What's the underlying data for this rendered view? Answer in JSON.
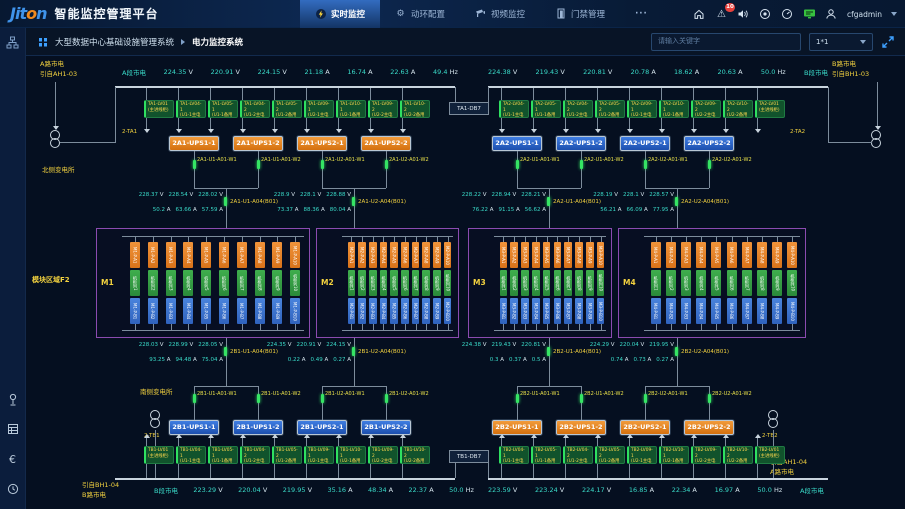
{
  "header": {
    "logo_prefix": "Jit",
    "logo_accent": "o",
    "logo_suffix": "n",
    "title": "智能监控管理平台",
    "tabs": [
      {
        "label": "实时监控",
        "active": true
      },
      {
        "label": "动环配置",
        "active": false
      },
      {
        "label": "视频监控",
        "active": false
      },
      {
        "label": "门禁管理",
        "active": false
      },
      {
        "label": "···",
        "active": false
      }
    ],
    "alarm_count": "10",
    "user": "cfgadmin"
  },
  "subheader": {
    "breadcrumb_root": "大型数据中心基础设施管理系统",
    "breadcrumb_current": "电力监控系统",
    "search_placeholder": "请输入关键字",
    "layout_option": "1*1"
  },
  "colors": {
    "accent_cyan": "#3adbc9",
    "label_yellow": "#f3d23f",
    "ups_orange": "#e8832a",
    "ups_blue": "#2e6fd6",
    "feeder_green": "#2fe060",
    "module_purple": "#8b4bb0",
    "wire_gray": "#7d8c9c",
    "alarm_red": "#e8413c"
  },
  "diagram": {
    "north": {
      "region": "北侧变电所",
      "left_incoming": [
        "A路市电",
        "引自AH1-03"
      ],
      "right_incoming": [
        "B路市电",
        "引自BH1-03"
      ],
      "left_transformer": "2-TA1",
      "right_transformer": "2-TA2",
      "tie": "TA1-DB7",
      "left_bus": {
        "label": "A段市电",
        "label_at": "start",
        "values": [
          "224.35 V",
          "220.91 V",
          "224.15 V",
          "21.18 A",
          "16.74 A",
          "22.63 A",
          "49.4 Hz"
        ]
      },
      "right_bus": {
        "label": "B段市电",
        "label_at": "end",
        "values": [
          "224.38 V",
          "219.43 V",
          "220.81 V",
          "20.78 A",
          "18.62 A",
          "20.63 A",
          "50.0 Hz"
        ]
      },
      "left_feeders": [
        {
          "n": "TA1-LV01",
          "d": "(主进线柜)"
        },
        {
          "n": "TA1-LV04-1",
          "d": "(U1-1主电源)"
        },
        {
          "n": "TA1-LV05-1",
          "d": "(U1-1备用电源)"
        },
        {
          "n": "TA1-LV04-2",
          "d": "(U1-2主电源)"
        },
        {
          "n": "TA1-LV05-2",
          "d": "(U1-2备用电源)"
        },
        {
          "n": "TA1-LV09-1",
          "d": "(U2-1主电源)"
        },
        {
          "n": "TA1-LV10-1",
          "d": "(U2-1备用电源)"
        },
        {
          "n": "TA1-LV09-2",
          "d": "(U2-2主电源)"
        },
        {
          "n": "TA1-LV10-2",
          "d": "(U2-2备用电源)"
        }
      ],
      "right_feeders": [
        {
          "n": "TA2-LV04-1",
          "d": "(U1-1主电源)"
        },
        {
          "n": "TA2-LV05-1",
          "d": "(U1-1备用电源)"
        },
        {
          "n": "TA2-LV04-2",
          "d": "(U1-2主电源)"
        },
        {
          "n": "TA2-LV05-2",
          "d": "(U1-2备用电源)"
        },
        {
          "n": "TA2-LV09-1",
          "d": "(U2-1主电源)"
        },
        {
          "n": "TA2-LV10-1",
          "d": "(U2-1备用电源)"
        },
        {
          "n": "TA2-LV09-2",
          "d": "(U2-2主电源)"
        },
        {
          "n": "TA2-LV10-2",
          "d": "(U2-2备用电源)"
        },
        {
          "n": "TA2-LV01",
          "d": "(主进线柜)"
        }
      ],
      "left_ups": [
        "2A1-UPS1-1",
        "2A1-UPS1-2",
        "2A1-UPS2-1",
        "2A1-UPS2-2"
      ],
      "right_ups": [
        "2A2-UPS1-1",
        "2A2-UPS1-2",
        "2A2-UPS2-1",
        "2A2-UPS2-2"
      ],
      "left_ups_color": "orange",
      "right_ups_color": "blue",
      "left_ups_out": [
        "2A1-U1-A01-W1",
        "2A1-U1-A01-W2",
        "2A1-U2-A01-W1",
        "2A1-U2-A01-W2"
      ],
      "right_ups_out": [
        "2A2-U1-A01-W1",
        "2A2-U1-A01-W2",
        "2A2-U2-A01-W1",
        "2A2-U2-A01-W2"
      ],
      "measurements": [
        {
          "tag": "2A1-U1-A04(B01)",
          "volts": [
            "228.37 V",
            "228.54 V",
            "228.02 V"
          ],
          "amps": [
            "50.2 A",
            "63.66 A",
            "57.59 A"
          ]
        },
        {
          "tag": "2A1-U2-A04(B01)",
          "volts": [
            "228.9 V",
            "228.1 V",
            "228.88 V"
          ],
          "amps": [
            "73.37 A",
            "88.36 A",
            "80.04 A"
          ]
        },
        {
          "tag": "2A2-U1-A04(B01)",
          "volts": [
            "228.22 V",
            "228.94 V",
            "228.21 V"
          ],
          "amps": [
            "76.22 A",
            "91.15 A",
            "56.62 A"
          ]
        },
        {
          "tag": "2A2-U2-A04(B01)",
          "volts": [
            "228.19 V",
            "228.1 V",
            "228.57 V"
          ],
          "amps": [
            "56.21 A",
            "66.09 A",
            "77.95 A"
          ]
        }
      ]
    },
    "modules": {
      "area_label": "模块区域F2",
      "names": [
        "M1",
        "M2",
        "M3",
        "M4"
      ],
      "columns": 10,
      "bar_a_suffix": "-P-A",
      "bar_b_suffix": "-P-B",
      "bar_g_label": "机柜列"
    },
    "south": {
      "region": "南侧变电所",
      "left_incoming": [
        "引自BH1-04",
        "B路市电"
      ],
      "right_incoming": [
        "引自AH1-04",
        "A路市电"
      ],
      "left_transformer": "2-TB1",
      "right_transformer": "2-TB2",
      "tie": "TB1-DB7",
      "left_bus": {
        "label": "B段市电",
        "label_at": "start",
        "values": [
          "223.29 V",
          "220.04 V",
          "219.95 V",
          "35.16 A",
          "48.34 A",
          "22.37 A",
          "50.0 Hz"
        ]
      },
      "right_bus": {
        "label": "A段市电",
        "label_at": "end",
        "values": [
          "223.59 V",
          "223.24 V",
          "224.17 V",
          "16.85 A",
          "22.34 A",
          "16.97 A",
          "50.0 Hz"
        ]
      },
      "left_feeders": [
        {
          "n": "TB1-LV01",
          "d": "(主进线柜)"
        },
        {
          "n": "TB1-LV04-1",
          "d": "(U1-1主电源)"
        },
        {
          "n": "TB1-LV05-1",
          "d": "(U1-1备用电源)"
        },
        {
          "n": "TB1-LV04-2",
          "d": "(U1-2主电源)"
        },
        {
          "n": "TB1-LV05-2",
          "d": "(U1-2备用电源)"
        },
        {
          "n": "TB1-LV09-1",
          "d": "(U2-1主电源)"
        },
        {
          "n": "TB1-LV10-1",
          "d": "(U2-1备用电源)"
        },
        {
          "n": "TB1-LV09-2",
          "d": "(U2-2主电源)"
        },
        {
          "n": "TB1-LV10-2",
          "d": "(U2-2备用电源)"
        }
      ],
      "right_feeders": [
        {
          "n": "TB2-LV04-1",
          "d": "(U1-1主电源)"
        },
        {
          "n": "TB2-LV05-1",
          "d": "(U1-1备用电源)"
        },
        {
          "n": "TB2-LV04-2",
          "d": "(U1-2主电源)"
        },
        {
          "n": "TB2-LV05-2",
          "d": "(U1-2备用电源)"
        },
        {
          "n": "TB2-LV09-1",
          "d": "(U2-1主电源)"
        },
        {
          "n": "TB2-LV10-1",
          "d": "(U2-1备用电源)"
        },
        {
          "n": "TB2-LV09-2",
          "d": "(U2-2主电源)"
        },
        {
          "n": "TB2-LV10-2",
          "d": "(U2-2备用电源)"
        },
        {
          "n": "TB2-LV01",
          "d": "(主进线柜)"
        }
      ],
      "left_ups": [
        "2B1-UPS1-1",
        "2B1-UPS1-2",
        "2B1-UPS2-1",
        "2B1-UPS2-2"
      ],
      "right_ups": [
        "2B2-UPS1-1",
        "2B2-UPS1-2",
        "2B2-UPS2-1",
        "2B2-UPS2-2"
      ],
      "left_ups_color": "blue",
      "right_ups_color": "orange",
      "left_ups_out": [
        "2B1-U1-A01-W1",
        "2B1-U1-A01-W2",
        "2B1-U2-A01-W1",
        "2B1-U2-A01-W2"
      ],
      "right_ups_out": [
        "2B2-U1-A01-W1",
        "2B2-U1-A01-W2",
        "2B2-U2-A01-W1",
        "2B2-U2-A01-W2"
      ],
      "measurements": [
        {
          "tag": "2B1-U1-A04(B01)",
          "volts": [
            "228.03 V",
            "228.99 V",
            "228.05 V"
          ],
          "amps": [
            "93.25 A",
            "94.48 A",
            "75.04 A"
          ]
        },
        {
          "tag": "2B1-U2-A04(B01)",
          "volts": [
            "224.35 V",
            "220.91 V",
            "224.15 V"
          ],
          "amps": [
            "0.22 A",
            "0.49 A",
            "0.27 A"
          ]
        },
        {
          "tag": "2B2-U1-A04(B01)",
          "volts": [
            "224.38 V",
            "219.43 V",
            "220.81 V"
          ],
          "amps": [
            "0.3 A",
            "0.37 A",
            "0.5 A"
          ]
        },
        {
          "tag": "2B2-U2-A04(B01)",
          "volts": [
            "224.29 V",
            "220.04 V",
            "219.95 V"
          ],
          "amps": [
            "0.74 A",
            "0.73 A",
            "0.27 A"
          ]
        }
      ]
    }
  }
}
